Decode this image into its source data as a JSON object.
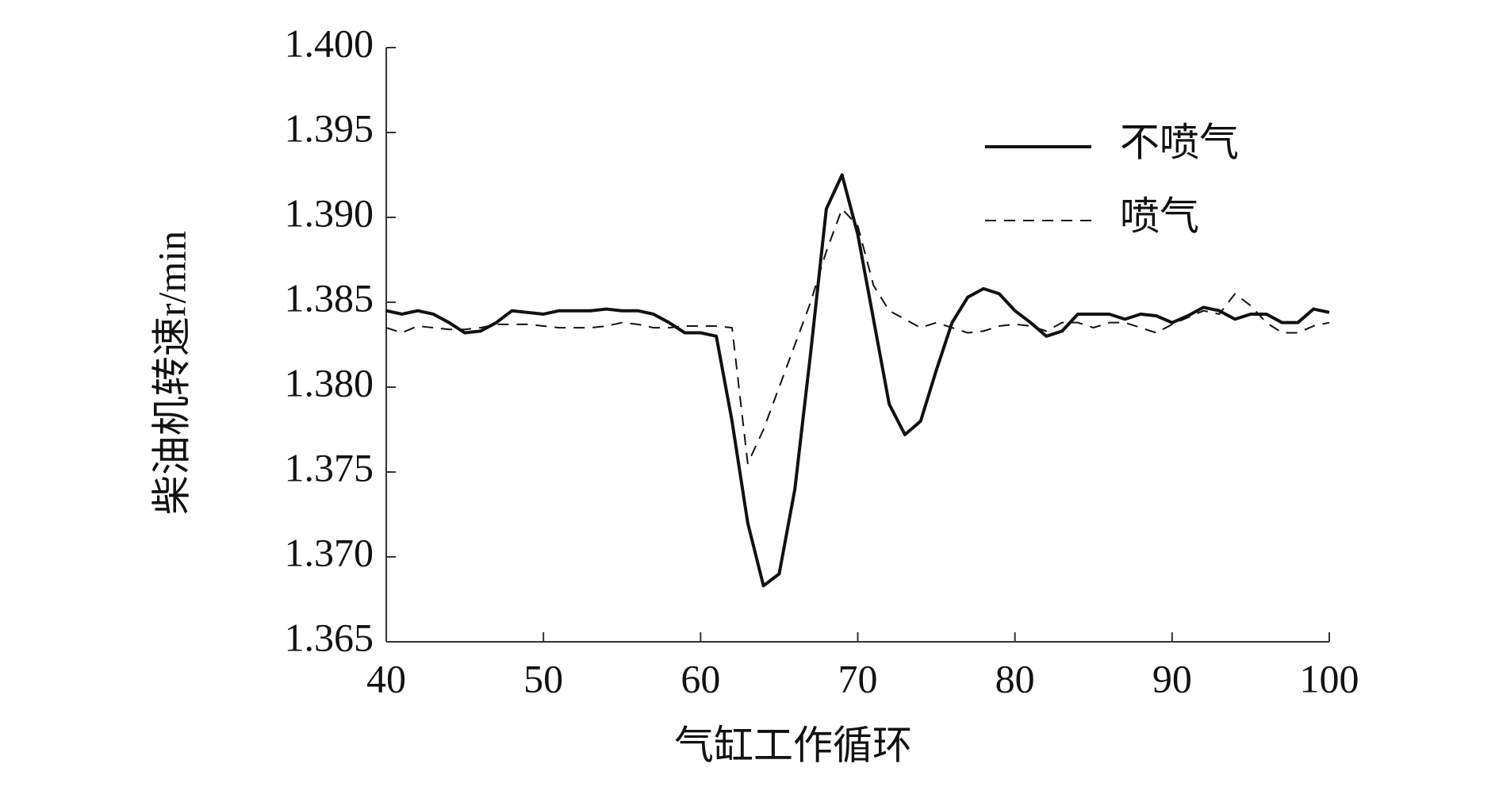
{
  "chart_data": {
    "type": "line",
    "x_label": "气缸工作循环",
    "y_label": "柴油机转速r/min",
    "x": [
      40,
      41,
      42,
      43,
      44,
      45,
      46,
      47,
      48,
      49,
      50,
      51,
      52,
      53,
      54,
      55,
      56,
      57,
      58,
      59,
      60,
      61,
      62,
      63,
      64,
      65,
      66,
      67,
      68,
      69,
      70,
      71,
      72,
      73,
      74,
      75,
      76,
      77,
      78,
      79,
      80,
      81,
      82,
      83,
      84,
      85,
      86,
      87,
      88,
      89,
      90,
      91,
      92,
      93,
      94,
      95,
      96,
      97,
      98,
      99,
      100
    ],
    "series": [
      {
        "name": "不喷气",
        "color": "#111111",
        "dash": "solid",
        "values": [
          1.3845,
          1.3843,
          1.3845,
          1.3843,
          1.3838,
          1.3832,
          1.3833,
          1.3838,
          1.3845,
          1.3844,
          1.3843,
          1.3845,
          1.3845,
          1.3845,
          1.3846,
          1.3845,
          1.3845,
          1.3843,
          1.3838,
          1.3832,
          1.3832,
          1.383,
          1.378,
          1.372,
          1.3683,
          1.369,
          1.374,
          1.382,
          1.3905,
          1.3925,
          1.389,
          1.384,
          1.379,
          1.3772,
          1.378,
          1.381,
          1.3838,
          1.3853,
          1.3858,
          1.3855,
          1.3845,
          1.3838,
          1.383,
          1.3833,
          1.3843,
          1.3843,
          1.3843,
          1.384,
          1.3843,
          1.3842,
          1.3838,
          1.3842,
          1.3847,
          1.3845,
          1.384,
          1.3843,
          1.3843,
          1.3838,
          1.3838,
          1.3846,
          1.3844
        ]
      },
      {
        "name": "喷气",
        "color": "#111111",
        "dash": "dashed",
        "values": [
          1.3835,
          1.3832,
          1.3836,
          1.3835,
          1.3834,
          1.3834,
          1.3835,
          1.3837,
          1.3837,
          1.3837,
          1.3836,
          1.3835,
          1.3835,
          1.3835,
          1.3836,
          1.3838,
          1.3837,
          1.3835,
          1.3835,
          1.3836,
          1.3836,
          1.3836,
          1.3835,
          1.3755,
          1.3775,
          1.38,
          1.3825,
          1.385,
          1.388,
          1.3905,
          1.3895,
          1.386,
          1.3845,
          1.384,
          1.3835,
          1.3838,
          1.3835,
          1.3832,
          1.3833,
          1.3836,
          1.3837,
          1.3836,
          1.3833,
          1.3838,
          1.3838,
          1.3835,
          1.3838,
          1.3838,
          1.3835,
          1.3832,
          1.3837,
          1.3841,
          1.3845,
          1.3843,
          1.3855,
          1.3848,
          1.3838,
          1.3832,
          1.3832,
          1.3836,
          1.3838
        ]
      }
    ],
    "xlim": [
      40,
      100
    ],
    "xticks": [
      40,
      50,
      60,
      70,
      80,
      90,
      100
    ],
    "ylim": [
      1.365,
      1.4
    ],
    "yticks": [
      1.365,
      {
        "value": 1.37,
        "label": "1.370"
      },
      1.375,
      {
        "value": 1.38,
        "label": "1.380"
      },
      1.385,
      {
        "value": 1.39,
        "label": "1.390"
      },
      1.395,
      {
        "value": 1.4,
        "label": "1.400"
      }
    ],
    "grid": false,
    "legend": "upper right"
  }
}
